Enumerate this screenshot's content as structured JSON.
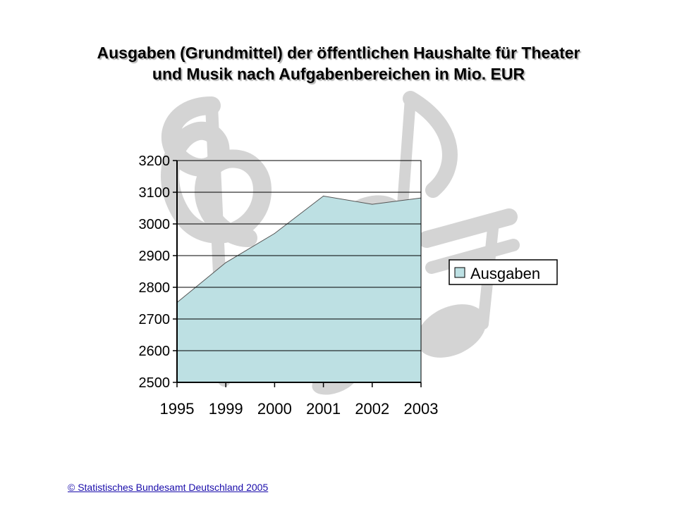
{
  "slide": {
    "title_line1": "Ausgaben (Grundmittel) der öffentlichen Haushalte für Theater",
    "title_line2": "und Musik nach Aufgabenbereichen in Mio. EUR",
    "source_link": "© Statistisches Bundesamt Deutschland 2005",
    "background_decoration": "music-notes-watermark"
  },
  "colors": {
    "area_fill": "#bde0e3",
    "area_stroke": "#555555",
    "gridline": "#000000",
    "watermark": "#d2d2d2",
    "link": "#1a0dab"
  },
  "chart_data": {
    "type": "area",
    "title": "Ausgaben (Grundmittel) der öffentlichen Haushalte für Theater und Musik nach Aufgabenbereichen in Mio. EUR",
    "categories": [
      "1995",
      "1999",
      "2000",
      "2001",
      "2002",
      "2003"
    ],
    "series": [
      {
        "name": "Ausgaben",
        "values": [
          2752,
          2878,
          2970,
          3088,
          3062,
          3082
        ]
      }
    ],
    "ylim": [
      2500,
      3200
    ],
    "yticks": [
      2500,
      2600,
      2700,
      2800,
      2900,
      3000,
      3100,
      3200
    ],
    "xlabel": "",
    "ylabel": "",
    "grid": "horizontal",
    "legend": "right"
  }
}
